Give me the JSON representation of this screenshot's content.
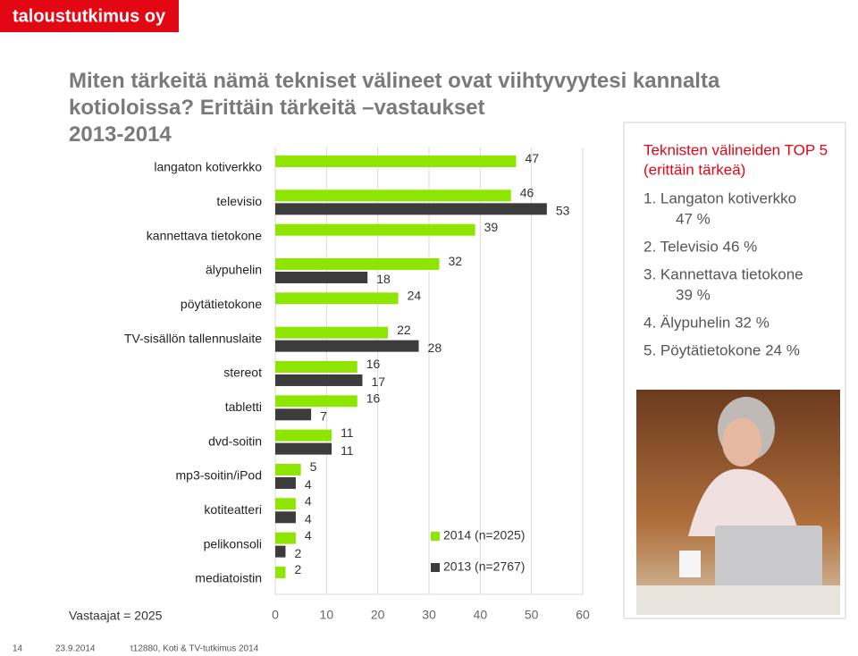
{
  "logo": "taloustutkimus oy",
  "chart_data": {
    "type": "bar",
    "orientation": "horizontal",
    "title": [
      "Miten tärkeitä nämä tekniset välineet ovat viihtyvyytesi kannalta",
      "kotioloissa? Erittäin tärkeitä –vastaukset",
      "2013-2014"
    ],
    "categories": [
      "langaton kotiverkko",
      "televisio",
      "kannettava tietokone",
      "älypuhelin",
      "pöytätietokone",
      "TV-sisällön tallennuslaite",
      "stereot",
      "tabletti",
      "dvd-soitin",
      "mp3-soitin/iPod",
      "kotiteatteri",
      "pelikonsoli",
      "mediatoistin"
    ],
    "series": [
      {
        "name": "2014 (n=2025)",
        "color": "#8ee600",
        "values": [
          47,
          46,
          39,
          32,
          24,
          22,
          16,
          16,
          11,
          5,
          4,
          4,
          2
        ]
      },
      {
        "name": "2013 (n=2767)",
        "color": "#3c3c3c",
        "values": [
          null,
          53,
          null,
          18,
          null,
          28,
          17,
          7,
          11,
          4,
          4,
          2,
          null
        ]
      }
    ],
    "xlim": [
      0,
      60
    ],
    "xticks": [
      0,
      10,
      20,
      30,
      40,
      50,
      60
    ],
    "grid": true,
    "note": "Vastaajat = 2025"
  },
  "sidebar": {
    "title": [
      "Teknisten välineiden TOP 5",
      "(erittäin tärkeä)"
    ],
    "items": [
      [
        "1. Langaton kotiverkko",
        "47 %"
      ],
      [
        "2. Televisio 46 %"
      ],
      [
        "3. Kannettava tietokone",
        "39 %"
      ],
      [
        "4. Älypuhelin 32 %"
      ],
      [
        "5. Pöytätietokone 24 %"
      ]
    ]
  },
  "footer": {
    "page": "14",
    "date": "23.9.2014",
    "source": "t12880, Koti & TV-tutkimus 2014"
  }
}
